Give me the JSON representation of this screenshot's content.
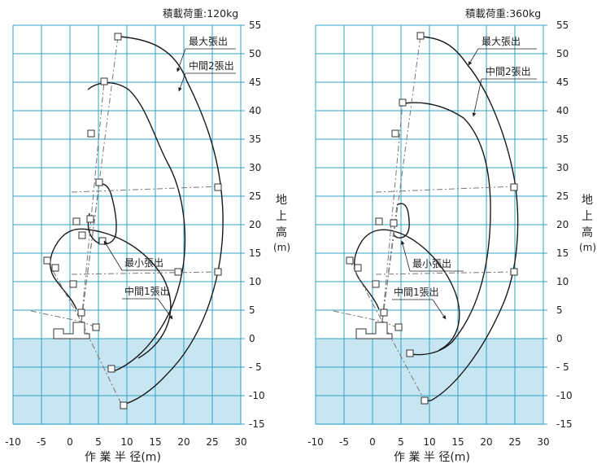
{
  "charts": [
    {
      "title": "積載荷重:120kg",
      "labels": {
        "max": "最大張出",
        "mid2": "中間2張出",
        "min": "最小張出",
        "mid1": "中間1張出"
      }
    },
    {
      "title": "積載荷重:360kg",
      "labels": {
        "max": "最大張出",
        "mid2": "中間2張出",
        "min": "最小張出",
        "mid1": "中間1張出"
      }
    }
  ],
  "xlabel": "作 業 半 径(m)",
  "ylabel_chars": [
    "地",
    "上",
    "高"
  ],
  "ylabel_unit": "(m)",
  "x_ticks": [
    "-10",
    "-5",
    "0",
    "5",
    "10",
    "15",
    "20",
    "25",
    "30"
  ],
  "y_ticks": [
    "55",
    "50",
    "45",
    "40",
    "35",
    "30",
    "25",
    "20",
    "15",
    "10",
    "5",
    "0",
    "- 5",
    "-10",
    "-15"
  ],
  "colors": {
    "grid": "#2fa3c7",
    "below_ground_fill": "#c7e6f2",
    "curve": "#1a1a1a",
    "boom": "#777777"
  }
}
